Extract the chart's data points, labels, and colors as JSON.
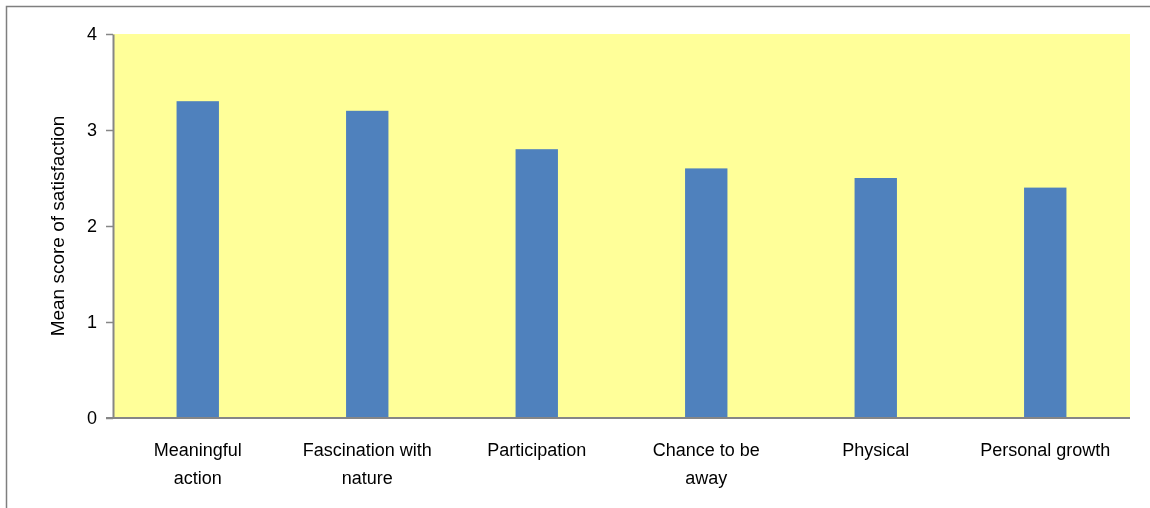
{
  "chart_data": {
    "type": "bar",
    "ylabel": "Mean score of satisfaction",
    "categories": [
      "Meaningful action",
      "Fascination with nature",
      "Participation",
      "Chance to be away",
      "Physical",
      "Personal growth"
    ],
    "values": [
      3.3,
      3.2,
      2.8,
      2.6,
      2.5,
      2.4
    ],
    "color": "#4f81bd",
    "ylim": [
      0,
      4
    ],
    "yticks": [
      0,
      1,
      2,
      3,
      4
    ]
  }
}
